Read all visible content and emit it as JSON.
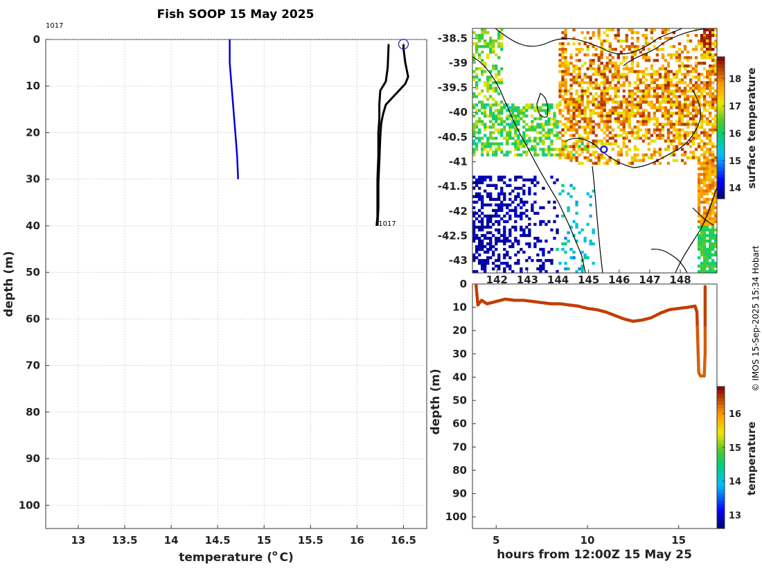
{
  "title": "Fish SOOP 15 May 2025",
  "credit": "© IMOS 15-Sep-2025 15:34 Hobart",
  "colors": {
    "profile_blue": "#0000dd",
    "profile_black": "#000000",
    "marker": "#2222bb"
  },
  "chart_data": [
    {
      "type": "line",
      "name": "profile",
      "xlabel": "temperature (",
      "xlabel_sup": "o",
      "xlabel_unit": "C)",
      "ylabel": "depth (m)",
      "xlim": [
        12.65,
        16.75
      ],
      "ylim": [
        0,
        105
      ],
      "xticks": [
        13,
        13.5,
        14,
        14.5,
        15,
        15.5,
        16,
        16.5
      ],
      "yticks": [
        0,
        10,
        20,
        30,
        40,
        50,
        60,
        70,
        80,
        90,
        100
      ],
      "annotations": [
        {
          "text": "1017",
          "x": 12.65,
          "y": -2.5
        },
        {
          "text": "1017",
          "x": 16.23,
          "y": 40
        }
      ],
      "marker": {
        "x": 16.5,
        "y": 1
      },
      "series": [
        {
          "name": "reference",
          "color": "#0000dd",
          "points": [
            [
              14.63,
              0
            ],
            [
              14.63,
              5
            ],
            [
              14.65,
              10
            ],
            [
              14.67,
              15
            ],
            [
              14.69,
              20
            ],
            [
              14.71,
              25
            ],
            [
              14.72,
              30
            ]
          ]
        },
        {
          "name": "cast-down",
          "color": "#000000",
          "points": [
            [
              16.34,
              1
            ],
            [
              16.33,
              6
            ],
            [
              16.31,
              9
            ],
            [
              16.28,
              10
            ],
            [
              16.25,
              11
            ],
            [
              16.24,
              14
            ],
            [
              16.24,
              17
            ],
            [
              16.23,
              20
            ],
            [
              16.23,
              25
            ],
            [
              16.22,
              30
            ],
            [
              16.22,
              35
            ],
            [
              16.22,
              38
            ],
            [
              16.21,
              40
            ]
          ]
        },
        {
          "name": "cast-up",
          "color": "#000000",
          "points": [
            [
              16.22,
              40
            ],
            [
              16.23,
              36
            ],
            [
              16.23,
              31
            ],
            [
              16.24,
              26
            ],
            [
              16.25,
              21
            ],
            [
              16.26,
              18
            ],
            [
              16.28,
              16
            ],
            [
              16.31,
              14
            ],
            [
              16.38,
              12.5
            ],
            [
              16.45,
              11
            ],
            [
              16.52,
              9.5
            ],
            [
              16.55,
              8
            ],
            [
              16.54,
              7
            ],
            [
              16.52,
              5
            ],
            [
              16.5,
              2
            ],
            [
              16.5,
              1
            ]
          ]
        }
      ]
    },
    {
      "type": "heatmap",
      "name": "sst-map",
      "colorbar_label": "surface temperature",
      "colorbar_ticks": [
        14,
        15,
        16,
        17,
        18
      ],
      "colorbar_range": [
        13.6,
        18.8
      ],
      "xlim": [
        141.2,
        149.2
      ],
      "ylim": [
        -43.25,
        -38.3
      ],
      "xticks": [
        142,
        143,
        144,
        145,
        146,
        147,
        148
      ],
      "yticks": [
        -38.5,
        -39,
        -39.5,
        -40,
        -40.5,
        -41,
        -41.5,
        -42,
        -42.5,
        -43
      ],
      "ytick_labels": [
        "-38.5",
        "-39",
        "-39.5",
        "-40",
        "-40.5",
        "-41",
        "-41.5",
        "-42",
        "-42.5",
        "-43"
      ],
      "xtick_labels": [
        "142",
        "143",
        "144",
        "145",
        "146",
        "147",
        "148"
      ],
      "marker": {
        "lon": 145.5,
        "lat": -40.75
      }
    },
    {
      "type": "scatter",
      "name": "depth-time",
      "xlabel": "hours from 12:00Z 15 May 25",
      "ylabel": "depth (m)",
      "xlim": [
        3.7,
        17.1
      ],
      "ylim": [
        0,
        105
      ],
      "xticks": [
        5,
        10,
        15
      ],
      "yticks": [
        0,
        10,
        20,
        30,
        40,
        50,
        60,
        70,
        80,
        90,
        100
      ],
      "colorbar_label": "temperature",
      "colorbar_ticks": [
        13,
        14,
        15,
        16
      ],
      "colorbar_range": [
        12.6,
        16.8
      ],
      "points": [
        [
          3.9,
          0.5
        ],
        [
          3.95,
          5
        ],
        [
          4.0,
          9
        ],
        [
          4.2,
          7
        ],
        [
          4.5,
          8.5
        ],
        [
          5.0,
          7.5
        ],
        [
          5.5,
          6.5
        ],
        [
          6.0,
          7
        ],
        [
          6.5,
          7
        ],
        [
          7.0,
          7.5
        ],
        [
          7.5,
          8
        ],
        [
          8.0,
          8.5
        ],
        [
          8.5,
          8.5
        ],
        [
          9.0,
          9
        ],
        [
          9.5,
          9.5
        ],
        [
          10.0,
          10.5
        ],
        [
          10.5,
          11
        ],
        [
          11.0,
          12
        ],
        [
          11.5,
          13.5
        ],
        [
          12.0,
          15
        ],
        [
          12.5,
          16
        ],
        [
          13.0,
          15.5
        ],
        [
          13.5,
          14.5
        ],
        [
          14.0,
          12.5
        ],
        [
          14.5,
          11
        ],
        [
          15.0,
          10.5
        ],
        [
          15.5,
          10
        ],
        [
          15.9,
          9.5
        ],
        [
          16.0,
          12
        ],
        [
          16.05,
          25
        ],
        [
          16.1,
          38
        ],
        [
          16.2,
          39.5
        ],
        [
          16.4,
          39.5
        ],
        [
          16.45,
          30
        ],
        [
          16.45,
          15
        ],
        [
          16.45,
          0.5
        ]
      ]
    }
  ]
}
